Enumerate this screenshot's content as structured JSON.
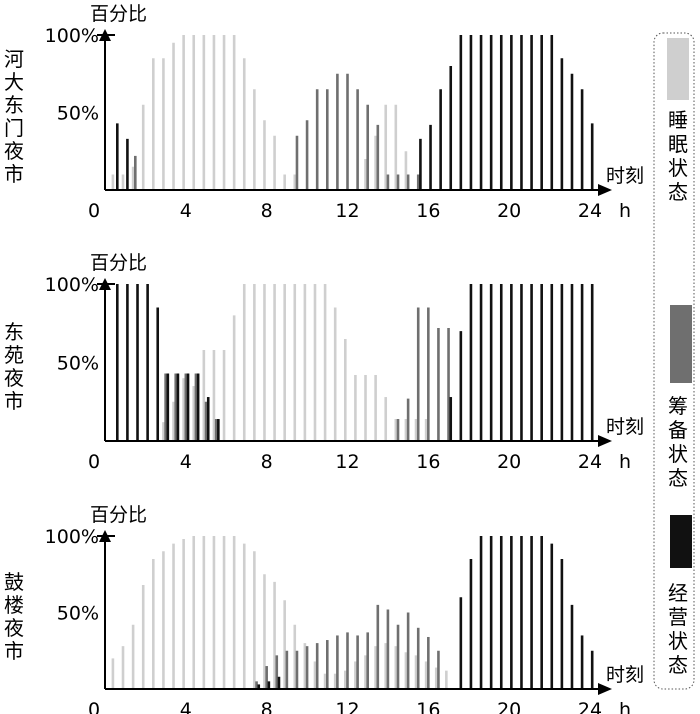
{
  "figure": {
    "legend_title": ""
  },
  "legend": {
    "items": [
      {
        "label": "睡眠状态",
        "color": "#cfcfcf"
      },
      {
        "label": "筹备状态",
        "color": "#6f6f6f"
      },
      {
        "label": "经营状态",
        "color": "#111111"
      }
    ]
  },
  "chart_data": [
    {
      "type": "bar",
      "title": "河大东门夜市",
      "ylabel": "百分比",
      "xlabel": "时刻",
      "x_unit": "h",
      "xlim": [
        0,
        24
      ],
      "ylim": [
        0,
        100
      ],
      "xticks": [
        "0",
        "4",
        "8",
        "12",
        "16",
        "20",
        "24"
      ],
      "yticks": [
        "50%",
        "100%"
      ],
      "series": [
        {
          "name": "睡眠状态",
          "x": [
            0.5,
            1,
            1.5,
            2,
            2.5,
            3,
            3.5,
            4,
            4.5,
            5,
            5.5,
            6,
            6.5,
            7,
            7.5,
            8,
            8.5,
            9,
            9.5,
            13,
            13.5,
            14,
            14.5,
            15
          ],
          "values": [
            10,
            10,
            15,
            55,
            85,
            85,
            95,
            100,
            100,
            100,
            100,
            100,
            100,
            85,
            65,
            45,
            35,
            10,
            10,
            20,
            35,
            55,
            55,
            25
          ]
        },
        {
          "name": "筹备状态",
          "x": [
            1.5,
            9.5,
            10,
            10.5,
            11,
            11.5,
            12,
            12.5,
            13,
            13.5,
            14,
            14.5,
            15,
            15.5
          ],
          "values": [
            22,
            35,
            45,
            65,
            65,
            75,
            75,
            65,
            55,
            42,
            10,
            10,
            10,
            10
          ]
        },
        {
          "name": "经营状态",
          "x": [
            0.5,
            1,
            15.5,
            16,
            16.5,
            17,
            17.5,
            18,
            18.5,
            19,
            19.5,
            20,
            20.5,
            21,
            21.5,
            22,
            22.5,
            23,
            23.5,
            24
          ],
          "values": [
            43,
            33,
            33,
            42,
            65,
            80,
            100,
            100,
            100,
            100,
            100,
            100,
            100,
            100,
            100,
            100,
            85,
            75,
            65,
            43
          ]
        }
      ]
    },
    {
      "type": "bar",
      "title": "东苑夜市",
      "ylabel": "百分比",
      "xlabel": "时刻",
      "x_unit": "h",
      "xlim": [
        0,
        24
      ],
      "ylim": [
        0,
        100
      ],
      "xticks": [
        "0",
        "4",
        "8",
        "12",
        "16",
        "20",
        "24"
      ],
      "yticks": [
        "50%",
        "100%"
      ],
      "series": [
        {
          "name": "睡眠状态",
          "x": [
            3,
            3.5,
            4,
            4.5,
            5,
            5.5,
            6,
            6.5,
            7,
            7.5,
            8,
            8.5,
            9,
            9.5,
            10,
            10.5,
            11,
            11.5,
            12,
            12.5,
            13,
            13.5,
            14,
            14.5,
            15,
            15.5,
            16
          ],
          "values": [
            12,
            25,
            40,
            35,
            58,
            58,
            58,
            80,
            100,
            100,
            100,
            100,
            100,
            100,
            100,
            100,
            100,
            85,
            65,
            42,
            42,
            42,
            28,
            14,
            14,
            14,
            14
          ]
        },
        {
          "name": "筹备状态",
          "x": [
            3,
            3.5,
            4,
            4.5,
            5,
            5.5,
            14.5,
            15,
            15.5,
            16,
            16.5,
            17
          ],
          "values": [
            43,
            43,
            43,
            43,
            25,
            14,
            14,
            27,
            85,
            85,
            72,
            72
          ]
        },
        {
          "name": "经营状态",
          "x": [
            0.5,
            1,
            1.5,
            2,
            2.5,
            3,
            3.5,
            4,
            4.5,
            5,
            5.5,
            17,
            17.5,
            18,
            18.5,
            19,
            19.5,
            20,
            20.5,
            21,
            21.5,
            22,
            22.5,
            23,
            23.5,
            24
          ],
          "values": [
            100,
            100,
            100,
            100,
            85,
            43,
            43,
            43,
            43,
            28,
            14,
            28,
            70,
            100,
            100,
            100,
            100,
            100,
            100,
            100,
            100,
            100,
            100,
            100,
            100,
            100
          ]
        }
      ]
    },
    {
      "type": "bar",
      "title": "鼓楼夜市",
      "ylabel": "百分比",
      "xlabel": "时刻",
      "x_unit": "h",
      "xlim": [
        0,
        24
      ],
      "ylim": [
        0,
        100
      ],
      "xticks": [
        "0",
        "4",
        "8",
        "12",
        "16",
        "20",
        "24"
      ],
      "yticks": [
        "50%",
        "100%"
      ],
      "series": [
        {
          "name": "睡眠状态",
          "x": [
            0.5,
            1,
            1.5,
            2,
            2.5,
            3,
            3.5,
            4,
            4.5,
            5,
            5.5,
            6,
            6.5,
            7,
            7.5,
            8,
            8.5,
            9,
            9.5,
            10,
            10.5,
            11,
            11.5,
            12,
            12.5,
            13,
            13.5,
            14,
            14.5,
            15,
            15.5,
            16,
            16.5,
            17
          ],
          "values": [
            20,
            28,
            42,
            68,
            85,
            90,
            95,
            98,
            100,
            100,
            100,
            100,
            100,
            95,
            90,
            75,
            70,
            58,
            42,
            30,
            18,
            10,
            10,
            12,
            18,
            22,
            28,
            30,
            28,
            24,
            22,
            18,
            14,
            12
          ]
        },
        {
          "name": "筹备状态",
          "x": [
            7.5,
            8,
            8.5,
            9,
            9.5,
            10,
            10.5,
            11,
            11.5,
            12,
            12.5,
            13,
            13.5,
            14,
            14.5,
            15,
            15.5,
            16,
            16.5
          ],
          "values": [
            5,
            15,
            22,
            25,
            25,
            28,
            30,
            32,
            35,
            37,
            35,
            37,
            55,
            52,
            42,
            50,
            40,
            34,
            25
          ]
        },
        {
          "name": "经营状态",
          "x": [
            7.5,
            8,
            8.5,
            17.5,
            18,
            18.5,
            19,
            19.5,
            20,
            20.5,
            21,
            21.5,
            22,
            22.5,
            23,
            23.5,
            24
          ],
          "values": [
            3,
            5,
            8,
            60,
            85,
            100,
            100,
            100,
            100,
            100,
            100,
            100,
            95,
            85,
            55,
            35,
            25
          ]
        }
      ]
    }
  ]
}
